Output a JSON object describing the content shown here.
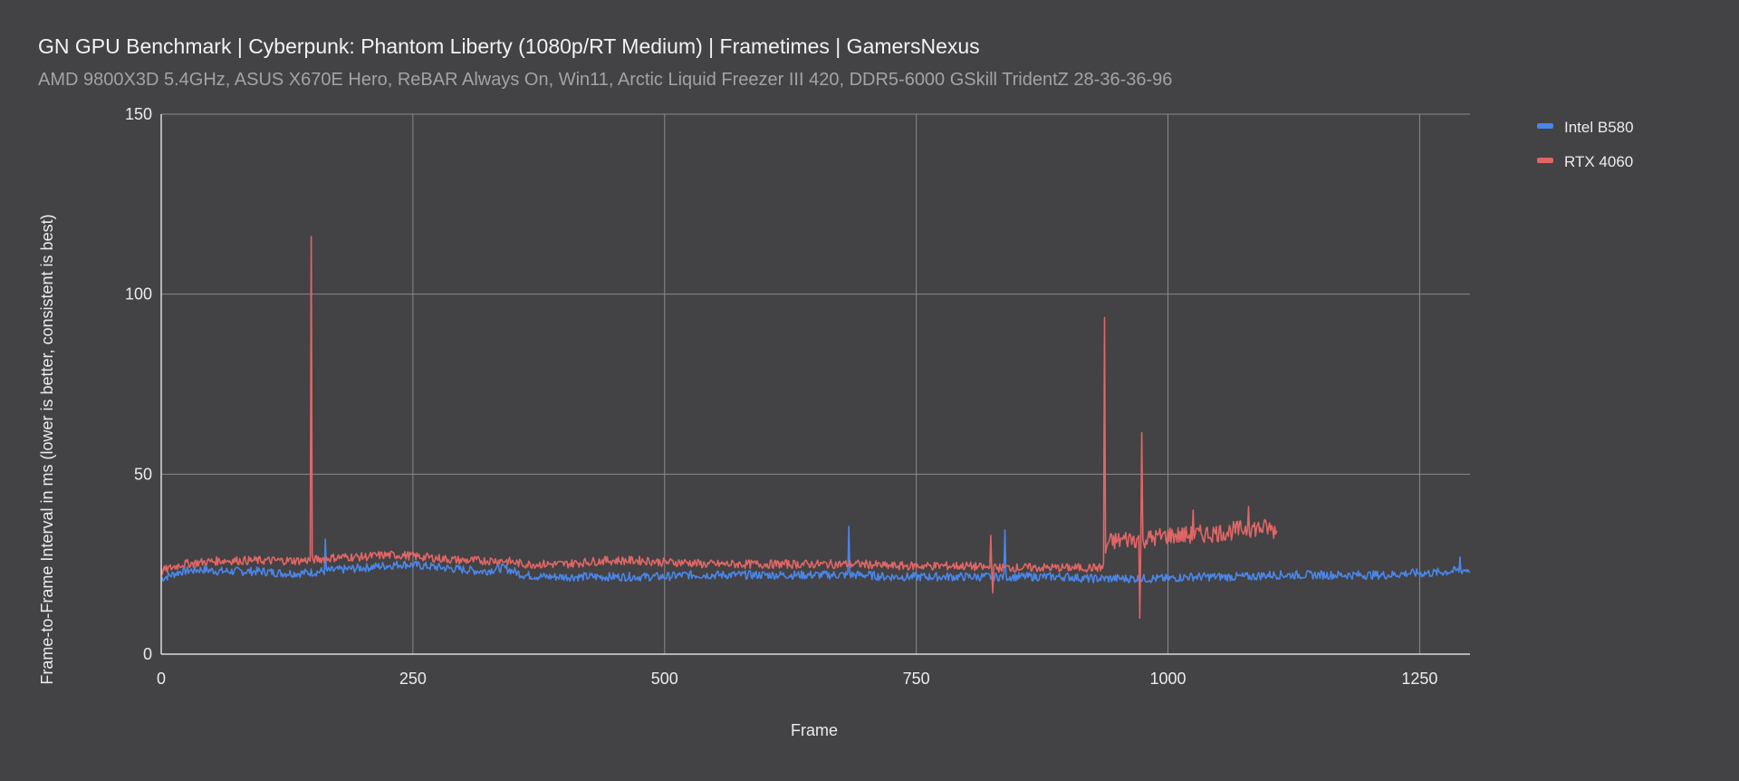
{
  "header": {
    "title": "GN GPU Benchmark | Cyberpunk: Phantom Liberty (1080p/RT Medium) | Frametimes | GamersNexus",
    "subtitle": "AMD 9800X3D 5.4GHz, ASUS X670E Hero, ReBAR Always On, Win11, Arctic Liquid Freezer III 420, DDR5-6000 GSkill TridentZ 28-36-36-96"
  },
  "colors": {
    "background": "#434244",
    "grid": "#8a898b",
    "axis": "#d9d9d9"
  },
  "chart_data": {
    "type": "line",
    "title": "GN GPU Benchmark | Cyberpunk: Phantom Liberty (1080p/RT Medium) | Frametimes | GamersNexus",
    "subtitle": "AMD 9800X3D 5.4GHz, ASUS X670E Hero, ReBAR Always On, Win11, Arctic Liquid Freezer III 420, DDR5-6000 GSkill TridentZ 28-36-36-96",
    "xlabel": "Frame",
    "ylabel": "Frame-to-Frame Interval in ms (lower is better, consistent is best)",
    "xlim": [
      0,
      1300
    ],
    "ylim": [
      0,
      150
    ],
    "xticks": [
      0,
      250,
      500,
      750,
      1000,
      1250
    ],
    "yticks": [
      0,
      50,
      100,
      150
    ],
    "grid": true,
    "legend_position": "right",
    "series": [
      {
        "name": "Intel B580",
        "color": "#4a86e8",
        "x": [
          0,
          20,
          40,
          60,
          80,
          100,
          120,
          140,
          160,
          180,
          200,
          220,
          240,
          260,
          280,
          300,
          320,
          340,
          360,
          380,
          400,
          420,
          440,
          460,
          480,
          500,
          520,
          540,
          560,
          580,
          600,
          620,
          640,
          660,
          680,
          700,
          720,
          740,
          760,
          780,
          800,
          820,
          840,
          860,
          880,
          900,
          920,
          940,
          960,
          980,
          1000,
          1020,
          1040,
          1060,
          1080,
          1100,
          1120,
          1140,
          1160,
          1180,
          1200,
          1220,
          1240,
          1260,
          1280,
          1300
        ],
        "values": [
          21,
          23,
          23.5,
          23,
          23,
          23,
          22.5,
          22.5,
          23,
          23.5,
          24,
          24.5,
          25,
          24.5,
          24,
          23.5,
          23,
          24,
          22,
          21.5,
          21.5,
          21.5,
          21.5,
          21.5,
          21.5,
          21.5,
          22,
          22,
          22,
          22,
          22,
          22,
          22,
          22,
          22,
          22,
          21.5,
          21.5,
          21.5,
          21.5,
          21.5,
          21.5,
          21.5,
          21.5,
          21.5,
          21.5,
          21,
          21,
          21,
          21,
          21,
          21.5,
          21.5,
          21.5,
          21.5,
          22,
          22,
          22,
          22,
          22,
          22,
          22,
          22.5,
          22.5,
          23,
          23.5
        ],
        "spikes": [
          [
            0,
            21
          ],
          [
            163,
            32
          ],
          [
            683,
            35.5
          ],
          [
            838,
            34.5
          ],
          [
            1290,
            27
          ]
        ]
      },
      {
        "name": "RTX 4060",
        "color": "#e06666",
        "x": [
          0,
          20,
          40,
          60,
          80,
          100,
          120,
          140,
          160,
          180,
          200,
          220,
          240,
          260,
          280,
          300,
          320,
          340,
          360,
          380,
          400,
          420,
          440,
          460,
          480,
          500,
          520,
          540,
          560,
          580,
          600,
          620,
          640,
          660,
          680,
          700,
          720,
          740,
          760,
          780,
          800,
          820,
          840,
          860,
          880,
          900,
          920,
          935,
          940,
          960,
          980,
          1000,
          1020,
          1040,
          1060,
          1080,
          1100,
          1108
        ],
        "values": [
          23,
          25,
          25.5,
          26,
          26,
          26,
          26,
          26,
          26.5,
          27,
          27,
          27.5,
          27.5,
          27,
          26.5,
          26,
          26,
          26,
          25,
          25,
          25,
          25.5,
          26,
          26,
          26,
          25.5,
          25.5,
          25,
          25,
          25,
          25,
          25,
          25,
          25,
          25,
          25,
          24.5,
          24.5,
          24.5,
          24.5,
          24.5,
          24,
          24,
          24,
          24,
          24,
          24,
          24,
          31,
          32,
          32,
          33,
          33,
          33.5,
          34,
          35,
          35,
          34
        ],
        "spikes": [
          [
            149,
            116
          ],
          [
            824,
            33
          ],
          [
            826,
            17
          ],
          [
            937,
            93.5
          ],
          [
            974,
            61.5
          ],
          [
            972,
            10
          ],
          [
            1025,
            40
          ],
          [
            1080,
            41
          ]
        ]
      }
    ]
  }
}
